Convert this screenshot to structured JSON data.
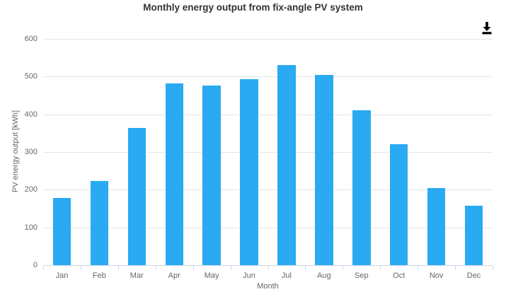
{
  "chart": {
    "title": "Monthly energy output from fix-angle PV system",
    "export_icon": "download-icon"
  },
  "colors": {
    "bar": "#29aaf2",
    "gridline": "#e6e6e6",
    "axis_line": "#ccd6eb",
    "title_text": "#333333",
    "axis_text": "#666666",
    "icon": "#000000"
  },
  "chart_data": {
    "type": "bar",
    "title": "Monthly energy output from fix-angle PV system",
    "xlabel": "Month",
    "ylabel": "PV energy output [kWh]",
    "categories": [
      "Jan",
      "Feb",
      "Mar",
      "Apr",
      "May",
      "Jun",
      "Jul",
      "Aug",
      "Sep",
      "Oct",
      "Nov",
      "Dec"
    ],
    "values": [
      178,
      224,
      364,
      481,
      477,
      494,
      530,
      505,
      410,
      321,
      204,
      158
    ],
    "ylim": [
      0,
      600
    ],
    "yticks": [
      0,
      100,
      200,
      300,
      400,
      500,
      600
    ],
    "grid": true,
    "legend_position": "none"
  }
}
